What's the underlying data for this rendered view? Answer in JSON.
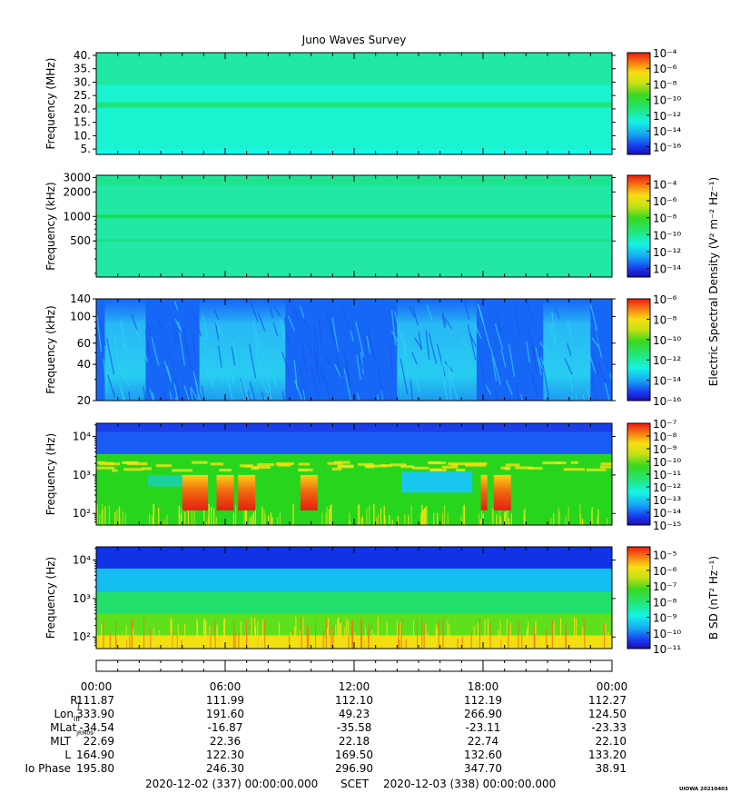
{
  "title": "Juno Waves Survey",
  "footer_stamp": "UIOWA 20210403",
  "chart_data": [
    {
      "type": "heatmap",
      "panel": "1",
      "ylabel": "Frequency (MHz)",
      "yscale": "linear",
      "ylim": [
        3,
        41
      ],
      "yticks": [
        5,
        10,
        15,
        20,
        25,
        30,
        35,
        40
      ],
      "ytick_labels": [
        "5.",
        "10.",
        "15.",
        "20.",
        "25.",
        "30.",
        "35.",
        "40."
      ],
      "colorbar": {
        "min_exp": -17,
        "max_exp": -4,
        "tick_exps": [
          -16,
          -14,
          -12,
          -10,
          -8,
          -6,
          -4
        ]
      },
      "background": "#19f3cf",
      "bands": [
        {
          "from": 20.5,
          "to": 22.5,
          "color": "#1ee27a"
        },
        {
          "from": 29,
          "to": 41,
          "color": "#1fe8a2"
        },
        {
          "from": 3,
          "to": 5,
          "color": "#16f8ea"
        }
      ]
    },
    {
      "type": "heatmap",
      "panel": "2",
      "ylabel": "Frequency (kHz)",
      "yscale": "log",
      "ylim": [
        180,
        3200
      ],
      "yticks": [
        500,
        1000,
        2000,
        3000
      ],
      "ytick_labels": [
        "500",
        "1000",
        "2000",
        "3000"
      ],
      "colorbar": {
        "min_exp": -15,
        "max_exp": -3,
        "tick_exps": [
          -14,
          -12,
          -10,
          -8,
          -6,
          -4
        ],
        "label": "Electric Spectral Density (V² m⁻² Hz⁻¹)"
      },
      "background": "#22e8a5",
      "bands": [
        {
          "from": 950,
          "to": 1050,
          "color": "#17dd55"
        },
        {
          "from": 490,
          "to": 525,
          "color": "#1fe087"
        },
        {
          "from": 2400,
          "to": 3000,
          "color": "#1ee48e"
        }
      ]
    },
    {
      "type": "heatmap",
      "panel": "3",
      "ylabel": "Frequency (kHz)",
      "yscale": "log",
      "ylim": [
        20,
        140
      ],
      "yticks": [
        20,
        40,
        60,
        100,
        140
      ],
      "ytick_labels": [
        "20",
        "40",
        "60",
        "100",
        "140"
      ],
      "colorbar": {
        "min_exp": -16,
        "max_exp": -6,
        "tick_exps": [
          -16,
          -14,
          -12,
          -10,
          -8,
          -6
        ]
      },
      "background": "#1767f6",
      "bright_regions_hours": [
        [
          0.4,
          2.3
        ],
        [
          4.8,
          8.8
        ],
        [
          14.0,
          17.7
        ],
        [
          20.8,
          23.0
        ]
      ]
    },
    {
      "type": "heatmap",
      "panel": "4",
      "ylabel": "Frequency (Hz)",
      "yscale": "log",
      "ylim": [
        50,
        22000
      ],
      "yticks": [
        100,
        1000,
        10000
      ],
      "ytick_labels": [
        "10²",
        "10³",
        "10⁴"
      ],
      "colorbar": {
        "min_exp": -15,
        "max_exp": -7,
        "tick_exps": [
          -15,
          -14,
          -13,
          -12,
          -11,
          -10,
          -9,
          -8,
          -7
        ]
      },
      "layers": [
        {
          "from": 50,
          "to": 22000,
          "color": "#27d61c"
        },
        {
          "from": 3500,
          "to": 22000,
          "color": "#1a5cf3"
        },
        {
          "from": 13000,
          "to": 22000,
          "color": "#1a3fe8"
        }
      ],
      "hot_spots_hours": [
        [
          4.0,
          5.2
        ],
        [
          5.6,
          6.4
        ],
        [
          6.6,
          7.4
        ],
        [
          9.5,
          10.3
        ],
        [
          17.9,
          18.2
        ],
        [
          18.5,
          19.3
        ]
      ]
    },
    {
      "type": "heatmap",
      "panel": "5",
      "ylabel": "Frequency (Hz)",
      "yscale": "log",
      "ylim": [
        50,
        22000
      ],
      "yticks": [
        100,
        1000,
        10000
      ],
      "ytick_labels": [
        "10²",
        "10³",
        "10⁴"
      ],
      "colorbar": {
        "min_exp": -11,
        "max_exp": -4.5,
        "tick_exps": [
          -11,
          -10,
          -9,
          -8,
          -7,
          -6,
          -5
        ],
        "label": "B SD (nT² Hz⁻¹)"
      },
      "layers": [
        {
          "from": 50,
          "to": 22000,
          "color": "#1033e6"
        },
        {
          "from": 50,
          "to": 6000,
          "color": "#13bdf0"
        },
        {
          "from": 50,
          "to": 1500,
          "color": "#22e06a"
        },
        {
          "from": 50,
          "to": 400,
          "color": "#5ee01a"
        },
        {
          "from": 50,
          "to": 110,
          "color": "#f0e010"
        }
      ]
    }
  ],
  "time_axis": {
    "hours": [
      0,
      6,
      12,
      18,
      24
    ],
    "labels": [
      "00:00",
      "06:00",
      "12:00",
      "18:00",
      "00:00"
    ]
  },
  "ephemeris": [
    {
      "label": "R",
      "sub": "J",
      "values": [
        "111.87",
        "111.99",
        "112.10",
        "112.19",
        "112.27"
      ]
    },
    {
      "label": "Lon",
      "sub": "III",
      "values": [
        "333.90",
        "191.60",
        "49.23",
        "266.90",
        "124.50"
      ]
    },
    {
      "label": "MLat",
      "sub": "JRM09",
      "values": [
        "-34.54",
        "-16.87",
        "-35.58",
        "-23.11",
        "-23.33"
      ]
    },
    {
      "label": "MLT",
      "sub": "",
      "values": [
        "22.69",
        "22.36",
        "22.18",
        "22.74",
        "22.10"
      ]
    },
    {
      "label": "L",
      "sub": "",
      "values": [
        "164.90",
        "122.30",
        "169.50",
        "132.60",
        "133.20"
      ]
    },
    {
      "label": "Io Phase",
      "sub": "",
      "values": [
        "195.80",
        "246.30",
        "296.90",
        "347.70",
        "38.91"
      ]
    }
  ],
  "footer": {
    "start": "2020-12-02 (337) 00:00:00.000",
    "scet": "SCET",
    "end": "2020-12-03 (338) 00:00:00.000"
  }
}
